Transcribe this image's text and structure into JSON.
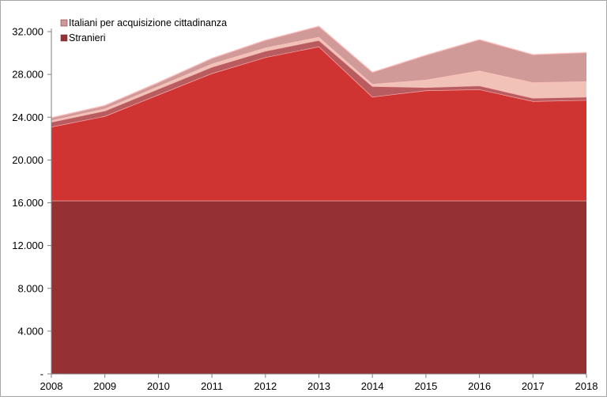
{
  "chart_data": {
    "type": "area",
    "stacked": true,
    "title": "",
    "xlabel": "",
    "ylabel": "",
    "categories": [
      "2008",
      "2009",
      "2010",
      "2011",
      "2012",
      "2013",
      "2014",
      "2015",
      "2016",
      "2017",
      "2018"
    ],
    "ylim": [
      0,
      32000
    ],
    "yticks": [
      0,
      4000,
      8000,
      12000,
      16000,
      20000,
      24000,
      28000,
      32000
    ],
    "ytick_labels": [
      "-",
      "4.000",
      "8.000",
      "12.000",
      "16.000",
      "20.000",
      "24.000",
      "28.000",
      "32.000"
    ],
    "grid": false,
    "legend_position": "top-left",
    "series": [
      {
        "name": "Stranieri",
        "values": [
          16200,
          16200,
          16200,
          16200,
          16200,
          16200,
          16200,
          16200,
          16200,
          16200,
          16200
        ],
        "color": "#953134"
      },
      {
        "name": "",
        "values": [
          6900,
          7900,
          9900,
          11900,
          13400,
          14400,
          9700,
          10300,
          10400,
          9300,
          9400
        ],
        "color": "#cf3433"
      },
      {
        "name": "",
        "values": [
          450,
          500,
          550,
          600,
          600,
          600,
          1000,
          300,
          350,
          300,
          300
        ],
        "color": "#b85c5f"
      },
      {
        "name": "",
        "values": [
          150,
          200,
          250,
          300,
          300,
          300,
          200,
          700,
          1400,
          1450,
          1450
        ],
        "color": "#f1c2b6"
      },
      {
        "name": "Italiani per acquisizione cittadinanza",
        "values": [
          250,
          300,
          350,
          500,
          700,
          1000,
          1100,
          2300,
          2900,
          2600,
          2700
        ],
        "color": "#d09a98"
      }
    ]
  }
}
